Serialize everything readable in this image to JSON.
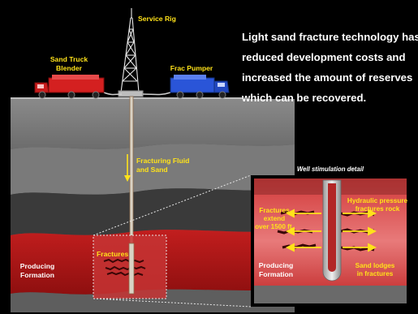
{
  "headline": [
    "Light sand fracture technology has",
    "reduced development costs and",
    "increased the amount of reserves",
    "which can be recovered."
  ],
  "labels": {
    "service_rig": "Service Rig",
    "sand_truck": [
      "Sand Truck",
      "Blender"
    ],
    "frac_pumper": "Frac Pumper",
    "fracturing_fluid": [
      "Fracturing Fluid",
      "and Sand"
    ],
    "fractures_left": "Fractures",
    "producing_formation_left": [
      "Producing",
      "Formation"
    ],
    "detail_title": "Well stimulation detail",
    "hydraulic_pressure": [
      "Hydraulic pressure",
      "fractures rock"
    ],
    "fractures_extend": [
      "Fractures",
      "extend",
      "over 1500 ft."
    ],
    "producing_formation_right": [
      "Producing",
      "Formation"
    ],
    "sand_lodges": [
      "Sand lodges",
      "in fractures"
    ]
  },
  "colors": {
    "label_yellow": "#ffe21a",
    "headline_white": "#ffffff",
    "truck_red": "#d42020",
    "truck_blue": "#2a55d8",
    "formation_red": "#b51818",
    "fracture_dark": "#3a0606"
  }
}
